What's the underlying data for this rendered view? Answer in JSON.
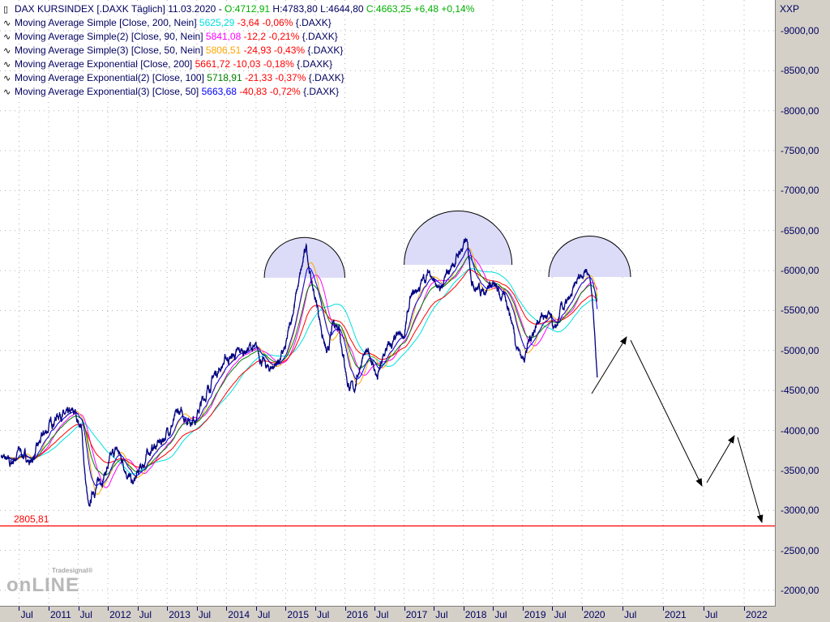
{
  "header": {
    "instrument": "DAX KURSINDEX [.DAXK  Täglich]",
    "date": "11.03.2020 -",
    "open": "O:4712,91",
    "high": "H:4783,80",
    "low": "L:4644,80",
    "close": "C:4663,25",
    "change": "+6,48",
    "change_pct": "+0,14%"
  },
  "indicators": [
    {
      "label": "Moving Average Simple [Close, 200, Nein]",
      "value": "5625,29",
      "change": "-3,64",
      "change_pct": "-0,06%",
      "suffix": "{.DAXK}",
      "color": "#00e0e0",
      "type": "sma",
      "period": 200
    },
    {
      "label": "Moving Average Simple(2) [Close, 90, Nein]",
      "value": "5841,08",
      "change": "-12,2",
      "change_pct": "-0,21%",
      "suffix": "{.DAXK}",
      "color": "#ff00ff",
      "type": "sma",
      "period": 90
    },
    {
      "label": "Moving Average Simple(3) [Close, 50, Nein]",
      "value": "5806,51",
      "change": "-24,93",
      "change_pct": "-0,43%",
      "suffix": "{.DAXK}",
      "color": "#ffa500",
      "type": "sma",
      "period": 50
    },
    {
      "label": "Moving Average Exponential [Close, 200]",
      "value": "5661,72",
      "change": "-10,03",
      "change_pct": "-0,18%",
      "suffix": "{.DAXK}",
      "color": "#ff0000",
      "type": "ema",
      "period": 200
    },
    {
      "label": "Moving Average Exponential(2) [Close, 100]",
      "value": "5718,91",
      "change": "-21,33",
      "change_pct": "-0,37%",
      "suffix": "{.DAXK}",
      "color": "#008000",
      "type": "ema",
      "period": 100
    },
    {
      "label": "Moving Average Exponential(3) [Close, 50]",
      "value": "5663,68",
      "change": "-40,83",
      "change_pct": "-0,72%",
      "suffix": "{.DAXK}",
      "color": "#0000ff",
      "type": "ema",
      "period": 50
    }
  ],
  "axis_unit": "XXP",
  "level_line": {
    "value": 2805.81,
    "label": "2805,81",
    "color": "#ff0000"
  },
  "chart_data": {
    "type": "line",
    "title": "DAX KURSINDEX [.DAXK Täglich]",
    "ylim": [
      1800,
      9350
    ],
    "y_ticks": [
      "9000,00",
      "8500,00",
      "8000,00",
      "7500,00",
      "7000,00",
      "6500,00",
      "6000,00",
      "5500,00",
      "5000,00",
      "4500,00",
      "4000,00",
      "3500,00",
      "3000,00",
      "2500,00",
      "2000,00"
    ],
    "x_ticks": [
      {
        "t": 2010.5,
        "label": "Jul"
      },
      {
        "t": 2011.0,
        "label": "2011"
      },
      {
        "t": 2011.5,
        "label": "Jul"
      },
      {
        "t": 2012.0,
        "label": "2012"
      },
      {
        "t": 2012.5,
        "label": "Jul"
      },
      {
        "t": 2013.0,
        "label": "2013"
      },
      {
        "t": 2013.5,
        "label": "Jul"
      },
      {
        "t": 2014.0,
        "label": "2014"
      },
      {
        "t": 2014.5,
        "label": "Jul"
      },
      {
        "t": 2015.0,
        "label": "2015"
      },
      {
        "t": 2015.5,
        "label": "Jul"
      },
      {
        "t": 2016.0,
        "label": "2016"
      },
      {
        "t": 2016.5,
        "label": "Jul"
      },
      {
        "t": 2017.0,
        "label": "2017"
      },
      {
        "t": 2017.5,
        "label": "Jul"
      },
      {
        "t": 2018.0,
        "label": "2018"
      },
      {
        "t": 2018.5,
        "label": "Jul"
      },
      {
        "t": 2019.0,
        "label": "2019"
      },
      {
        "t": 2019.5,
        "label": "Jul"
      },
      {
        "t": 2020.0,
        "label": "2020"
      },
      {
        "t": 2020.5,
        "label": "Jul"
      },
      {
        "t": 2021.0,
        "label": "2021"
      },
      {
        "t": 2021.5,
        "label": "Jul"
      },
      {
        "t": 2022.0,
        "label": "2022"
      }
    ],
    "price_keypoints": [
      [
        2010.2,
        3700
      ],
      [
        2010.35,
        3550
      ],
      [
        2010.5,
        3750
      ],
      [
        2010.7,
        3600
      ],
      [
        2010.9,
        3900
      ],
      [
        2011.05,
        4100
      ],
      [
        2011.2,
        4250
      ],
      [
        2011.3,
        4150
      ],
      [
        2011.45,
        4200
      ],
      [
        2011.55,
        4050
      ],
      [
        2011.62,
        3400
      ],
      [
        2011.68,
        2950
      ],
      [
        2011.75,
        3250
      ],
      [
        2011.85,
        3350
      ],
      [
        2012.0,
        3550
      ],
      [
        2012.15,
        3750
      ],
      [
        2012.3,
        3550
      ],
      [
        2012.42,
        3300
      ],
      [
        2012.55,
        3500
      ],
      [
        2012.7,
        3750
      ],
      [
        2012.9,
        3850
      ],
      [
        2013.05,
        4050
      ],
      [
        2013.2,
        4200
      ],
      [
        2013.4,
        4150
      ],
      [
        2013.5,
        4200
      ],
      [
        2013.65,
        4450
      ],
      [
        2013.8,
        4700
      ],
      [
        2014.0,
        4900
      ],
      [
        2014.2,
        4950
      ],
      [
        2014.4,
        5050
      ],
      [
        2014.55,
        4950
      ],
      [
        2014.7,
        4750
      ],
      [
        2014.85,
        4850
      ],
      [
        2015.0,
        5000
      ],
      [
        2015.15,
        5600
      ],
      [
        2015.3,
        6100
      ],
      [
        2015.35,
        6300
      ],
      [
        2015.45,
        5800
      ],
      [
        2015.55,
        5500
      ],
      [
        2015.7,
        4900
      ],
      [
        2015.8,
        5300
      ],
      [
        2015.9,
        5350
      ],
      [
        2016.05,
        4600
      ],
      [
        2016.15,
        4500
      ],
      [
        2016.3,
        4950
      ],
      [
        2016.45,
        4900
      ],
      [
        2016.55,
        4650
      ],
      [
        2016.7,
        5000
      ],
      [
        2016.85,
        5100
      ],
      [
        2017.0,
        5200
      ],
      [
        2017.1,
        5600
      ],
      [
        2017.3,
        5850
      ],
      [
        2017.45,
        6000
      ],
      [
        2017.6,
        5700
      ],
      [
        2017.8,
        6050
      ],
      [
        2017.95,
        6250
      ],
      [
        2018.05,
        6350
      ],
      [
        2018.15,
        5900
      ],
      [
        2018.3,
        5750
      ],
      [
        2018.45,
        5850
      ],
      [
        2018.6,
        5700
      ],
      [
        2018.75,
        5600
      ],
      [
        2018.9,
        5100
      ],
      [
        2019.0,
        4900
      ],
      [
        2019.15,
        5200
      ],
      [
        2019.3,
        5450
      ],
      [
        2019.45,
        5400
      ],
      [
        2019.55,
        5200
      ],
      [
        2019.65,
        5500
      ],
      [
        2019.8,
        5600
      ],
      [
        2019.95,
        5900
      ],
      [
        2020.05,
        6050
      ],
      [
        2020.1,
        5950
      ],
      [
        2020.15,
        5400
      ],
      [
        2020.17,
        4950
      ],
      [
        2020.19,
        4663
      ]
    ],
    "highlight_arcs": [
      {
        "t0": 2014.64,
        "t1": 2016.0,
        "base": 5910
      },
      {
        "t0": 2017.0,
        "t1": 2018.82,
        "base": 6072
      },
      {
        "t0": 2019.44,
        "t1": 2020.6,
        "base": 5920
      }
    ],
    "forecast_arrows": [
      {
        "from": [
          2020.12,
          4461
        ],
        "to": [
          2020.55,
          5170
        ]
      },
      {
        "from": [
          2020.6,
          5130
        ],
        "to": [
          2021.48,
          3306
        ]
      },
      {
        "from": [
          2021.54,
          3347
        ],
        "to": [
          2021.88,
          3934
        ]
      },
      {
        "from": [
          2021.92,
          3914
        ],
        "to": [
          2022.22,
          2850
        ]
      }
    ]
  },
  "logo": {
    "brand": "Tradesignal",
    "name": "onLINE"
  }
}
